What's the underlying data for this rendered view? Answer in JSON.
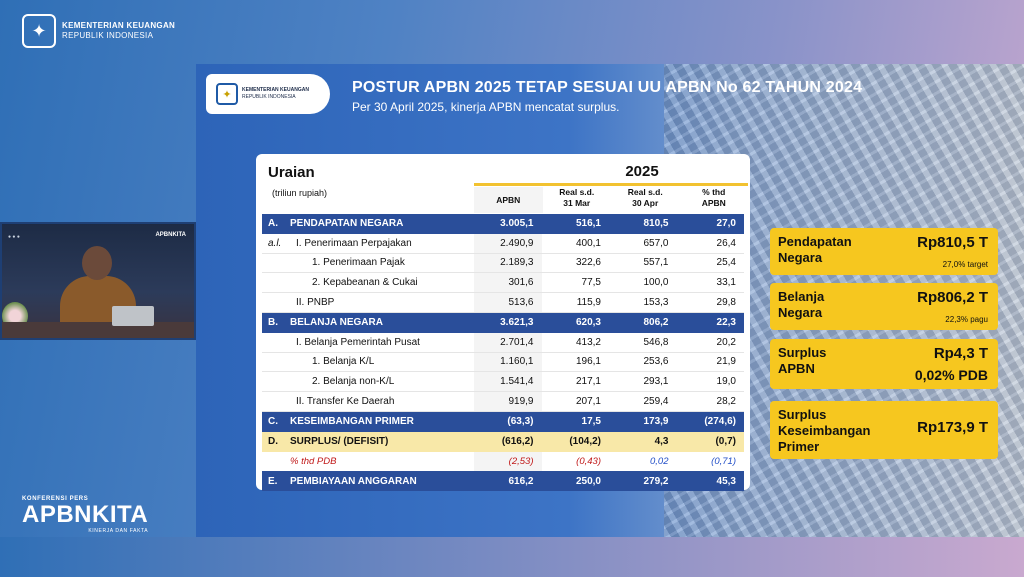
{
  "header": {
    "org_line1": "KEMENTERIAN KEUANGAN",
    "org_line2": "REPUBLIK INDONESIA"
  },
  "video": {
    "label": "APBNKITA"
  },
  "event": {
    "line1": "KONFERENSI PERS",
    "line2": "APBNKITA",
    "line3": "KINERJA DAN FAKTA"
  },
  "slide": {
    "logo_line1": "KEMENTERIAN KEUANGAN",
    "logo_line2": "REPUBLIK INDONESIA",
    "title": "POSTUR APBN 2025 TETAP SESUAI UU APBN No 62 TAHUN 2024",
    "subtitle": "Per 30 April 2025, kinerja APBN mencatat surplus."
  },
  "table": {
    "head": "Uraian",
    "unit": "(triliun rupiah)",
    "year": "2025",
    "columns": [
      "APBN",
      "Real s.d.\n31 Mar",
      "Real s.d.\n30 Apr",
      "% thd\nAPBN"
    ],
    "rows": [
      {
        "code": "A.",
        "label": "PENDAPATAN NEGARA",
        "style": "blue",
        "vals": [
          "3.005,1",
          "516,1",
          "810,5",
          "27,0"
        ]
      },
      {
        "code": "a.l.",
        "label": "I. Penerimaan Perpajakan",
        "style": "sub1",
        "vals": [
          "2.490,9",
          "400,1",
          "657,0",
          "26,4"
        ]
      },
      {
        "code": "",
        "label": "1.    Penerimaan Pajak",
        "style": "sub3",
        "vals": [
          "2.189,3",
          "322,6",
          "557,1",
          "25,4"
        ]
      },
      {
        "code": "",
        "label": "2.    Kepabeanan & Cukai",
        "style": "sub3",
        "vals": [
          "301,6",
          "77,5",
          "100,0",
          "33,1"
        ]
      },
      {
        "code": "",
        "label": "II. PNBP",
        "style": "sub1",
        "vals": [
          "513,6",
          "115,9",
          "153,3",
          "29,8"
        ]
      },
      {
        "code": "B.",
        "label": "BELANJA NEGARA",
        "style": "blue",
        "vals": [
          "3.621,3",
          "620,3",
          "806,2",
          "22,3"
        ]
      },
      {
        "code": "",
        "label": "I. Belanja Pemerintah Pusat",
        "style": "sub1",
        "vals": [
          "2.701,4",
          "413,2",
          "546,8",
          "20,2"
        ]
      },
      {
        "code": "",
        "label": "1.    Belanja K/L",
        "style": "sub3",
        "vals": [
          "1.160,1",
          "196,1",
          "253,6",
          "21,9"
        ]
      },
      {
        "code": "",
        "label": "2.    Belanja non-K/L",
        "style": "sub3",
        "vals": [
          "1.541,4",
          "217,1",
          "293,1",
          "19,0"
        ]
      },
      {
        "code": "",
        "label": "II. Transfer Ke Daerah",
        "style": "sub1",
        "vals": [
          "919,9",
          "207,1",
          "259,4",
          "28,2"
        ]
      },
      {
        "code": "C.",
        "label": "KESEIMBANGAN PRIMER",
        "style": "blue",
        "vals": [
          "(63,3)",
          "17,5",
          "173,9",
          "(274,6)"
        ]
      },
      {
        "code": "D.",
        "label": "SURPLUS/ (DEFISIT)",
        "style": "yellow",
        "vals": [
          "(616,2)",
          "(104,2)",
          "4,3",
          "(0,7)"
        ]
      },
      {
        "code": "",
        "label": "% thd PDB",
        "style": "pct",
        "vals": [
          "(2,53)",
          "(0,43)",
          "0,02",
          "(0,71)"
        ]
      },
      {
        "code": "E.",
        "label": "PEMBIAYAAN ANGGARAN",
        "style": "blue",
        "vals": [
          "616,2",
          "250,0",
          "279,2",
          "45,3"
        ]
      }
    ]
  },
  "cards": [
    {
      "label": "Pendapatan\nNegara",
      "value": "Rp810,5 T",
      "note": "27,0% target"
    },
    {
      "label": "Belanja\nNegara",
      "value": "Rp806,2 T",
      "note": "22,3% pagu"
    },
    {
      "label": "Surplus\nAPBN",
      "value": "Rp4,3 T",
      "note": "0,02% PDB"
    },
    {
      "label": "Surplus\nKeseimbangan\nPrimer",
      "value": "Rp173,9 T",
      "note": ""
    }
  ],
  "colors": {
    "accent_blue": "#2a4e9a",
    "yellow": "#f6c71f",
    "negative_red": "#c01818"
  }
}
